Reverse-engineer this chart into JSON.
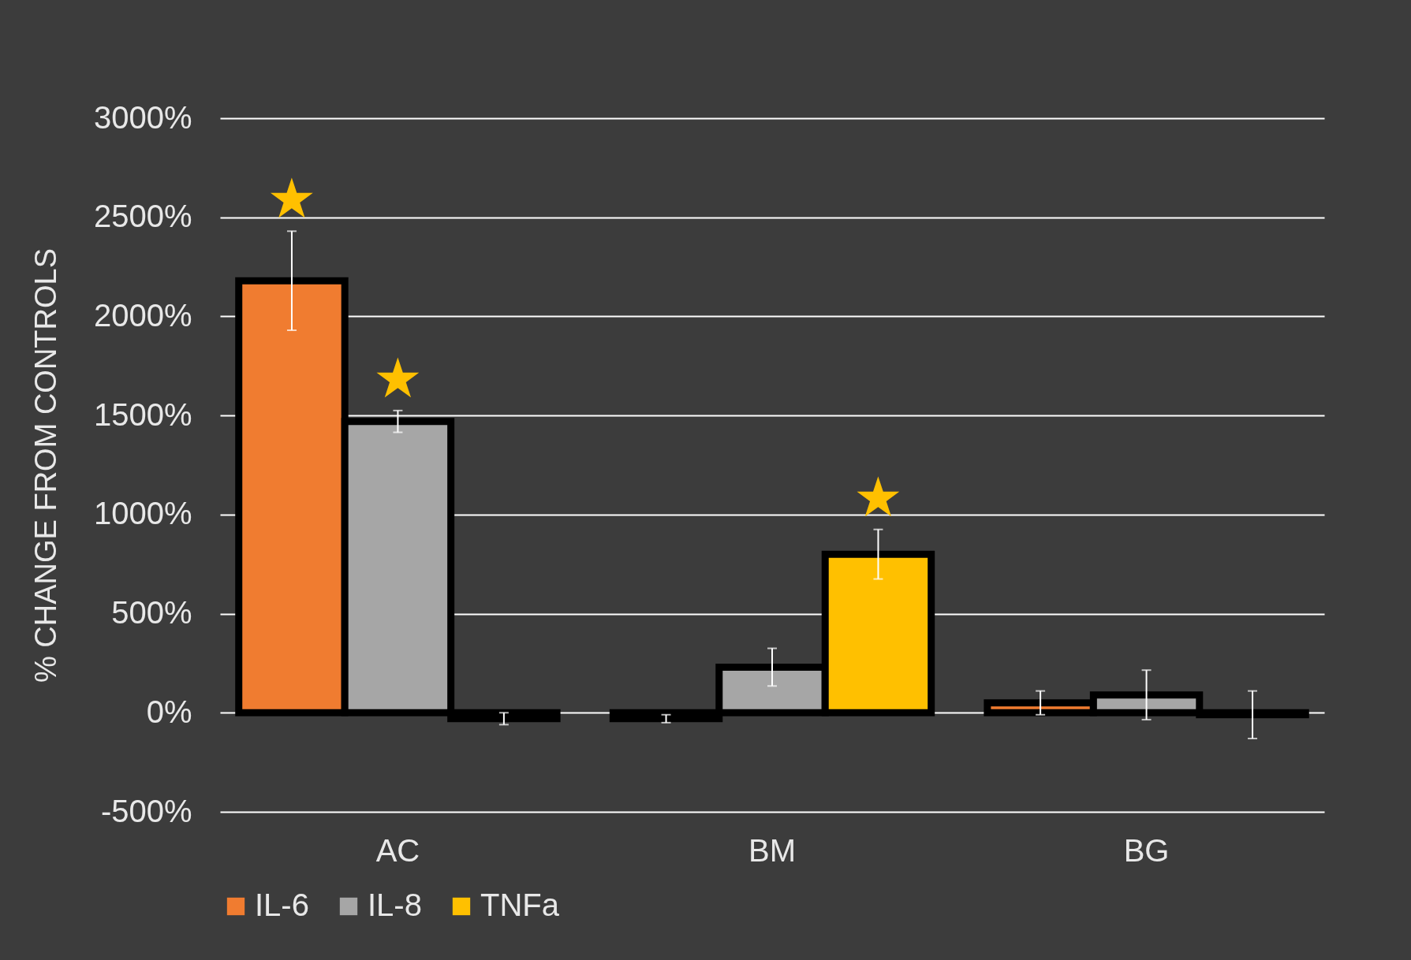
{
  "chart_data": {
    "type": "bar",
    "ylabel": "% CHANGE FROM CONTROLS",
    "categories": [
      "AC",
      "BM",
      "BG"
    ],
    "series": [
      {
        "name": "IL-6",
        "color": "#f07c30",
        "values": [
          2180,
          -30,
          50
        ],
        "errors": [
          250,
          20,
          60
        ],
        "value_labels": [
          "★",
          null,
          null
        ]
      },
      {
        "name": "IL-8",
        "color": "#a6a6a6",
        "values": [
          1470,
          230,
          90
        ],
        "errors": [
          55,
          95,
          125
        ],
        "value_labels": [
          "★",
          null,
          null
        ]
      },
      {
        "name": "TNFa",
        "color": "#ffc000",
        "values": [
          -30,
          800,
          -10
        ],
        "errors": [
          30,
          125,
          120
        ],
        "value_labels": [
          null,
          "★",
          null
        ]
      }
    ],
    "ylim": [
      -500,
      3000
    ],
    "yticks": [
      {
        "value": -500,
        "label": "-500%"
      },
      {
        "value": 0,
        "label": "0%"
      },
      {
        "value": 500,
        "label": "500%"
      },
      {
        "value": 1000,
        "label": "1000%"
      },
      {
        "value": 1500,
        "label": "1500%"
      },
      {
        "value": 2000,
        "label": "2000%"
      },
      {
        "value": 2500,
        "label": "2500%"
      },
      {
        "value": 3000,
        "label": "3000%"
      }
    ],
    "grid": "y",
    "legend": "bottom"
  }
}
